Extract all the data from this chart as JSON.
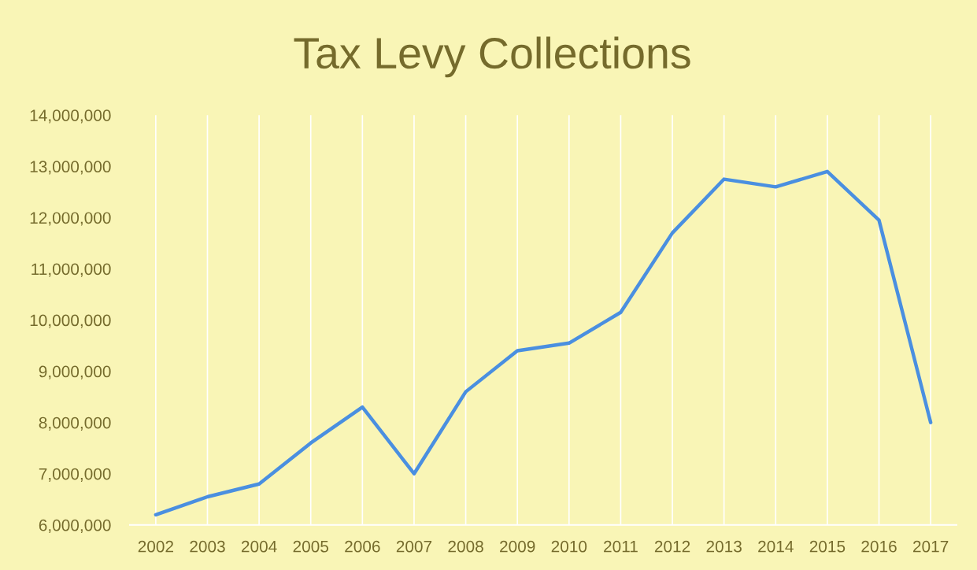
{
  "chart_data": {
    "type": "line",
    "title": "Tax Levy Collections",
    "categories": [
      "2002",
      "2003",
      "2004",
      "2005",
      "2006",
      "2007",
      "2008",
      "2009",
      "2010",
      "2011",
      "2012",
      "2013",
      "2014",
      "2015",
      "2016",
      "2017"
    ],
    "series": [
      {
        "color": "#4a8fe0",
        "values": [
          6200000,
          6550000,
          6800000,
          7600000,
          8300000,
          7000000,
          8600000,
          9400000,
          9550000,
          10150000,
          11700000,
          12750000,
          12600000,
          12900000,
          11950000,
          8000000
        ]
      }
    ],
    "ylim": [
      6000000,
      14000000
    ],
    "yticks": [
      {
        "value": 6000000,
        "label": "6,000,000"
      },
      {
        "value": 7000000,
        "label": "7,000,000"
      },
      {
        "value": 8000000,
        "label": "8,000,000"
      },
      {
        "value": 9000000,
        "label": "9,000,000"
      },
      {
        "value": 10000000,
        "label": "10,000,000"
      },
      {
        "value": 11000000,
        "label": "11,000,000"
      },
      {
        "value": 12000000,
        "label": "12,000,000"
      },
      {
        "value": 13000000,
        "label": "13,000,000"
      },
      {
        "value": 14000000,
        "label": "14,000,000"
      }
    ],
    "grid": "x"
  }
}
